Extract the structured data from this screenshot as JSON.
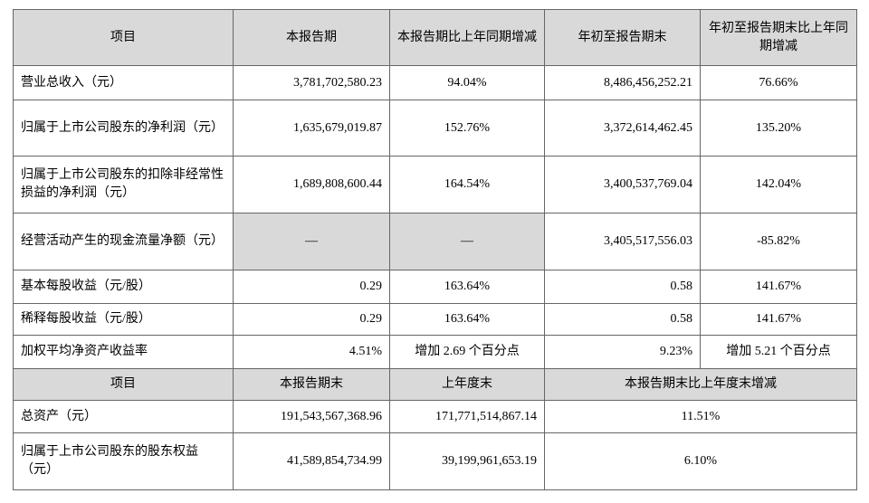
{
  "table": {
    "header": [
      "项目",
      "本报告期",
      "本报告期比上年同期增减",
      "年初至报告期末",
      "年初至报告期末比上年同期增减"
    ],
    "rows": [
      [
        "营业总收入（元）",
        "3,781,702,580.23",
        "94.04%",
        "8,486,456,252.21",
        "76.66%"
      ],
      [
        "归属于上市公司股东的净利润（元）",
        "1,635,679,019.87",
        "152.76%",
        "3,372,614,462.45",
        "135.20%"
      ],
      [
        "归属于上市公司股东的扣除非经常性损益的净利润（元）",
        "1,689,808,600.44",
        "164.54%",
        "3,400,537,769.04",
        "142.04%"
      ],
      [
        "经营活动产生的现金流量净额（元）",
        "—",
        "—",
        "3,405,517,556.03",
        "-85.82%"
      ],
      [
        "基本每股收益（元/股）",
        "0.29",
        "163.64%",
        "0.58",
        "141.67%"
      ],
      [
        "稀释每股收益（元/股）",
        "0.29",
        "163.64%",
        "0.58",
        "141.67%"
      ],
      [
        "加权平均净资产收益率",
        "4.51%",
        "增加 2.69 个百分点",
        "9.23%",
        "增加 5.21 个百分点"
      ]
    ],
    "header2": [
      "项目",
      "本报告期末",
      "上年度末",
      "本报告期末比上年度末增减"
    ],
    "rows2": [
      [
        "总资产（元）",
        "191,543,567,368.96",
        "171,771,514,867.14",
        "11.51%"
      ],
      [
        "归属于上市公司股东的股东权益（元）",
        "41,589,854,734.99",
        "39,199,961,653.19",
        "6.10%"
      ]
    ]
  }
}
